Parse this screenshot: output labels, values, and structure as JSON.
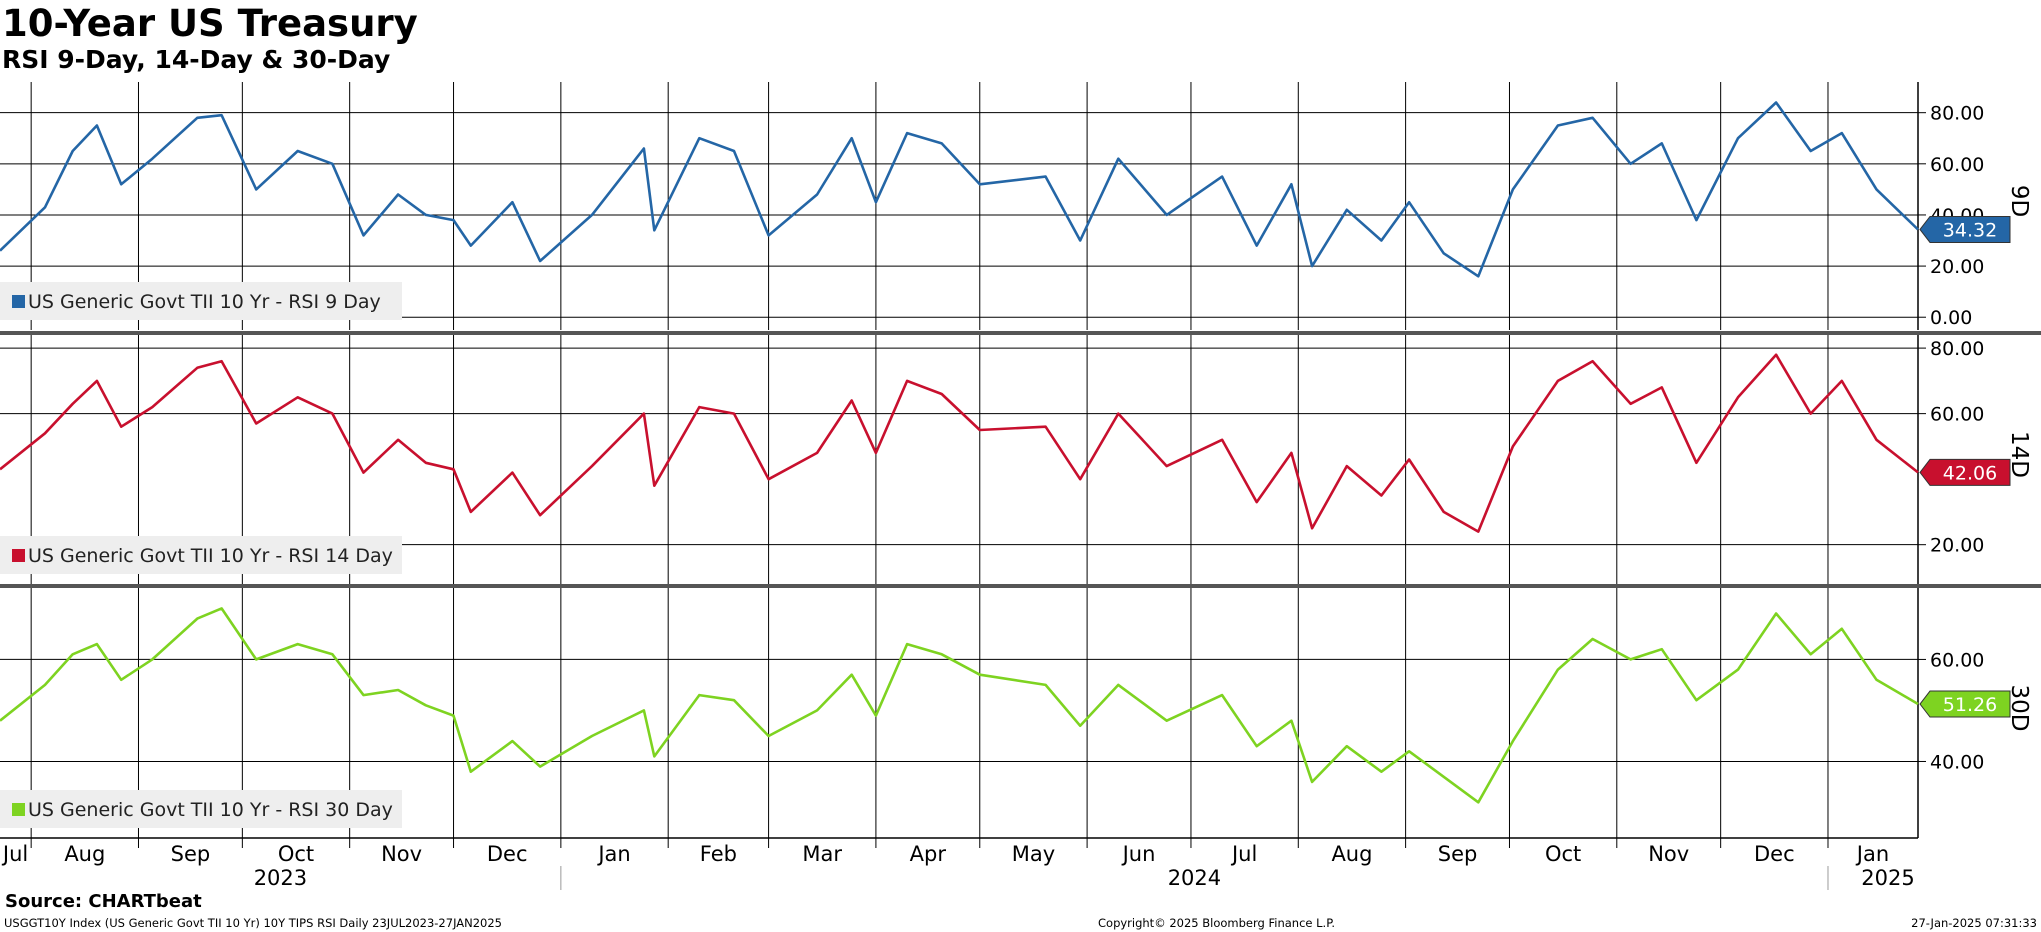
{
  "header": {
    "title": "10-Year US Treasury",
    "subtitle": "RSI 9-Day, 14-Day & 30-Day"
  },
  "footer": {
    "source": "Source: CHARTbeat",
    "left": "USGGT10Y Index (US Generic Govt TII 10 Yr) 10Y TIPS RSI  Daily 23JUL2023-27JAN2025",
    "mid": "Copyright© 2025 Bloomberg Finance L.P.",
    "right": "27-Jan-2025 07:31:33"
  },
  "chart_data": {
    "type": "line",
    "x_axis": {
      "months": [
        "Jul",
        "Aug",
        "Sep",
        "Oct",
        "Nov",
        "Dec",
        "Jan",
        "Feb",
        "Mar",
        "Apr",
        "May",
        "Jun",
        "Jul",
        "Aug",
        "Sep",
        "Oct",
        "Nov",
        "Dec",
        "Jan"
      ],
      "years": [
        "2023",
        "2024",
        "2025"
      ],
      "start_date": "2023-07-23",
      "end_date": "2025-01-27"
    },
    "grid": true,
    "legend_placement": "bottom-left",
    "panels": [
      {
        "axis_label": "9D",
        "legend": "US Generic Govt TII 10 Yr - RSI 9 Day",
        "color": "#2466a6",
        "last_value": "34.32",
        "ylim": [
          -5,
          92
        ],
        "y_ticks": [
          "0.00",
          "20.00",
          "40.00",
          "60.00",
          "80.00"
        ],
        "tick_values": [
          0,
          20,
          40,
          60,
          80
        ],
        "dates": [
          "2023-07-23",
          "2023-08-05",
          "2023-08-13",
          "2023-08-20",
          "2023-08-27",
          "2023-09-05",
          "2023-09-18",
          "2023-09-25",
          "2023-10-05",
          "2023-10-17",
          "2023-10-27",
          "2023-11-05",
          "2023-11-15",
          "2023-11-23",
          "2023-12-01",
          "2023-12-06",
          "2023-12-18",
          "2023-12-26",
          "2024-01-10",
          "2024-01-25",
          "2024-01-28",
          "2024-02-10",
          "2024-02-20",
          "2024-03-01",
          "2024-03-15",
          "2024-03-25",
          "2024-04-01",
          "2024-04-10",
          "2024-04-20",
          "2024-05-01",
          "2024-05-20",
          "2024-05-30",
          "2024-06-10",
          "2024-06-24",
          "2024-07-10",
          "2024-07-20",
          "2024-07-30",
          "2024-08-05",
          "2024-08-15",
          "2024-08-25",
          "2024-09-02",
          "2024-09-12",
          "2024-09-22",
          "2024-10-02",
          "2024-10-15",
          "2024-10-25",
          "2024-11-05",
          "2024-11-14",
          "2024-11-24",
          "2024-12-06",
          "2024-12-17",
          "2024-12-27",
          "2025-01-05",
          "2025-01-15",
          "2025-01-27"
        ],
        "values": [
          26,
          43,
          65,
          75,
          52,
          62,
          78,
          79,
          50,
          65,
          60,
          32,
          48,
          40,
          38,
          28,
          45,
          22,
          40,
          66,
          34,
          70,
          65,
          32,
          48,
          70,
          45,
          72,
          68,
          52,
          55,
          30,
          62,
          40,
          55,
          28,
          52,
          20,
          42,
          30,
          45,
          25,
          16,
          50,
          75,
          78,
          60,
          68,
          38,
          70,
          84,
          65,
          72,
          50,
          34.32
        ]
      },
      {
        "axis_label": "14D",
        "legend": "US Generic Govt TII 10 Yr - RSI 14 Day",
        "color": "#c8102e",
        "last_value": "42.06",
        "ylim": [
          8,
          84
        ],
        "y_ticks": [
          "20.00",
          "60.00",
          "80.00"
        ],
        "tick_values": [
          20,
          60,
          80
        ],
        "dates": [
          "2023-07-23",
          "2023-08-05",
          "2023-08-13",
          "2023-08-20",
          "2023-08-27",
          "2023-09-05",
          "2023-09-18",
          "2023-09-25",
          "2023-10-05",
          "2023-10-17",
          "2023-10-27",
          "2023-11-05",
          "2023-11-15",
          "2023-11-23",
          "2023-12-01",
          "2023-12-06",
          "2023-12-18",
          "2023-12-26",
          "2024-01-10",
          "2024-01-25",
          "2024-01-28",
          "2024-02-10",
          "2024-02-20",
          "2024-03-01",
          "2024-03-15",
          "2024-03-25",
          "2024-04-01",
          "2024-04-10",
          "2024-04-20",
          "2024-05-01",
          "2024-05-20",
          "2024-05-30",
          "2024-06-10",
          "2024-06-24",
          "2024-07-10",
          "2024-07-20",
          "2024-07-30",
          "2024-08-05",
          "2024-08-15",
          "2024-08-25",
          "2024-09-02",
          "2024-09-12",
          "2024-09-22",
          "2024-10-02",
          "2024-10-15",
          "2024-10-25",
          "2024-11-05",
          "2024-11-14",
          "2024-11-24",
          "2024-12-06",
          "2024-12-17",
          "2024-12-27",
          "2025-01-05",
          "2025-01-15",
          "2025-01-27"
        ],
        "values": [
          43,
          54,
          63,
          70,
          56,
          62,
          74,
          76,
          57,
          65,
          60,
          42,
          52,
          45,
          43,
          30,
          42,
          29,
          44,
          60,
          38,
          62,
          60,
          40,
          48,
          64,
          48,
          70,
          66,
          55,
          56,
          40,
          60,
          44,
          52,
          33,
          48,
          25,
          44,
          35,
          46,
          30,
          24,
          50,
          70,
          76,
          63,
          68,
          45,
          65,
          78,
          60,
          70,
          52,
          42.06
        ]
      },
      {
        "axis_label": "30D",
        "legend": "US Generic Govt TII 10 Yr - RSI 30 Day",
        "color": "#7ed321",
        "last_value": "51.26",
        "ylim": [
          25,
          74
        ],
        "y_ticks": [
          "40.00",
          "60.00"
        ],
        "tick_values": [
          40,
          60
        ],
        "dates": [
          "2023-07-23",
          "2023-08-05",
          "2023-08-13",
          "2023-08-20",
          "2023-08-27",
          "2023-09-05",
          "2023-09-18",
          "2023-09-25",
          "2023-10-05",
          "2023-10-17",
          "2023-10-27",
          "2023-11-05",
          "2023-11-15",
          "2023-11-23",
          "2023-12-01",
          "2023-12-06",
          "2023-12-18",
          "2023-12-26",
          "2024-01-10",
          "2024-01-25",
          "2024-01-28",
          "2024-02-10",
          "2024-02-20",
          "2024-03-01",
          "2024-03-15",
          "2024-03-25",
          "2024-04-01",
          "2024-04-10",
          "2024-04-20",
          "2024-05-01",
          "2024-05-20",
          "2024-05-30",
          "2024-06-10",
          "2024-06-24",
          "2024-07-10",
          "2024-07-20",
          "2024-07-30",
          "2024-08-05",
          "2024-08-15",
          "2024-08-25",
          "2024-09-02",
          "2024-09-12",
          "2024-09-22",
          "2024-10-02",
          "2024-10-15",
          "2024-10-25",
          "2024-11-05",
          "2024-11-14",
          "2024-11-24",
          "2024-12-06",
          "2024-12-17",
          "2024-12-27",
          "2025-01-05",
          "2025-01-15",
          "2025-01-27"
        ],
        "values": [
          48,
          55,
          61,
          63,
          56,
          60,
          68,
          70,
          60,
          63,
          61,
          53,
          54,
          51,
          49,
          38,
          44,
          39,
          45,
          50,
          41,
          53,
          52,
          45,
          50,
          57,
          49,
          63,
          61,
          57,
          55,
          47,
          55,
          48,
          53,
          43,
          48,
          36,
          43,
          38,
          42,
          37,
          32,
          44,
          58,
          64,
          60,
          62,
          52,
          58,
          69,
          61,
          66,
          56,
          51.26
        ]
      }
    ]
  }
}
